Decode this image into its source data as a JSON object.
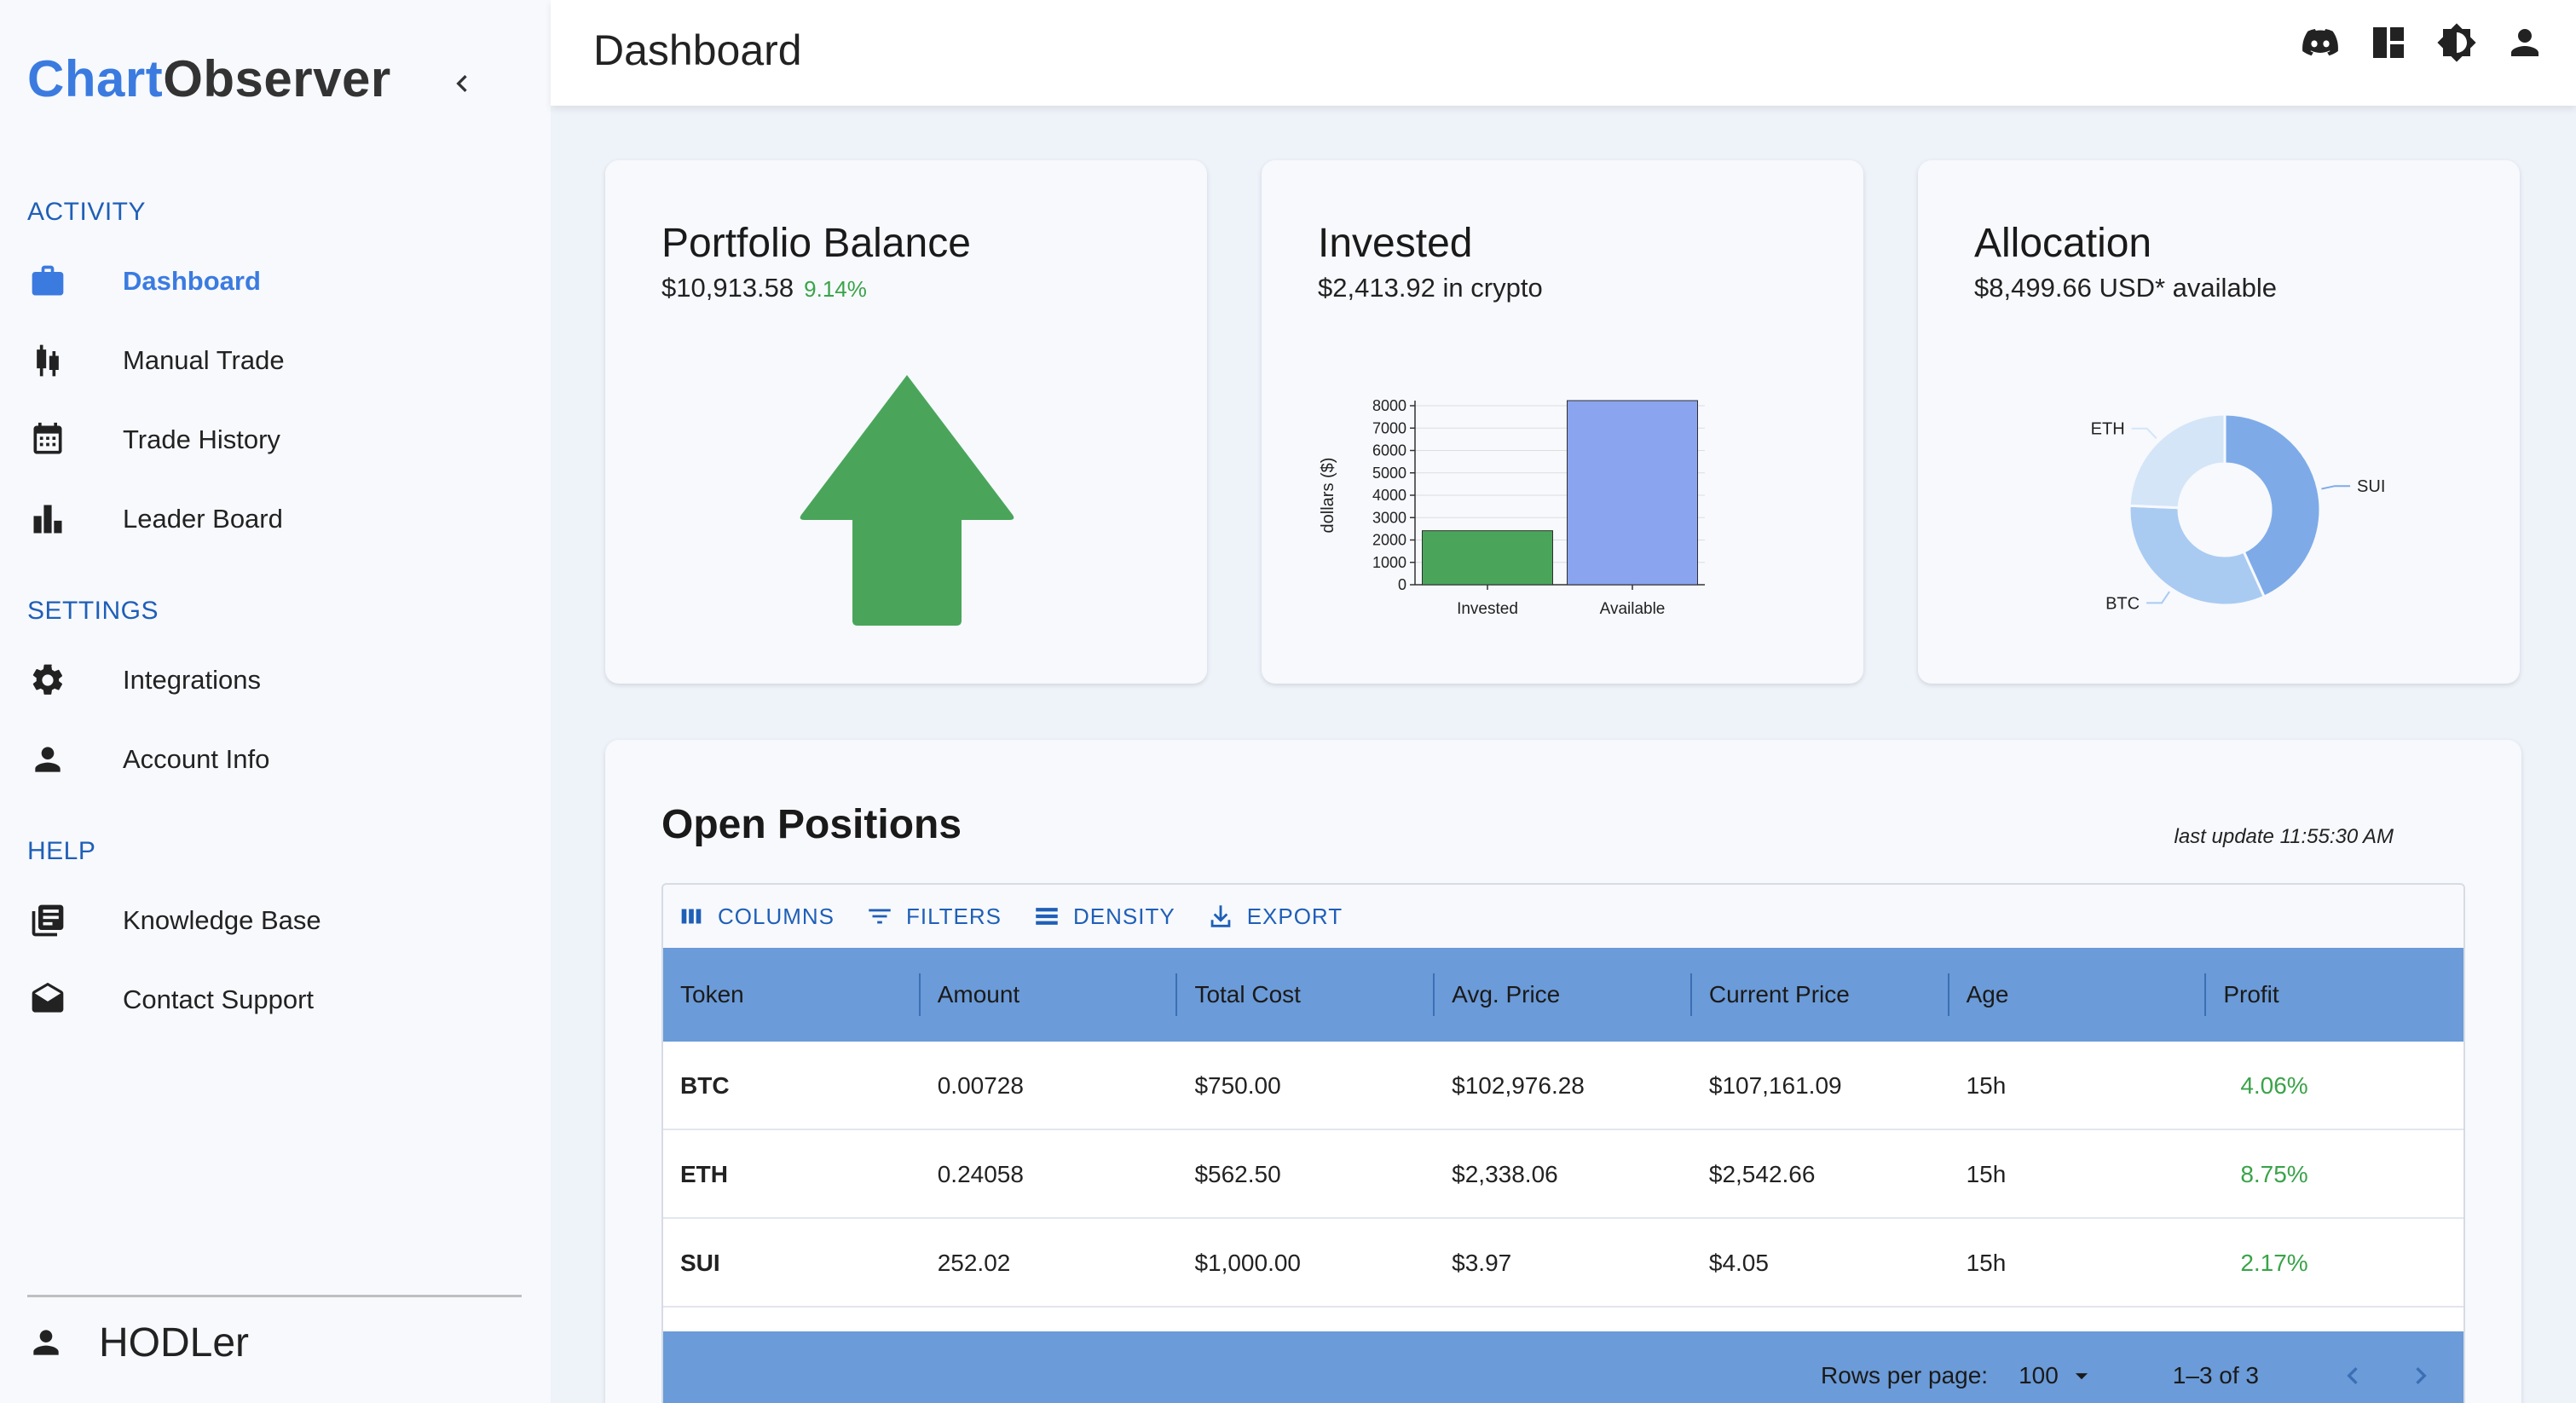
{
  "brand": {
    "part1": "Chart",
    "part2": "Observer"
  },
  "sidebar": {
    "sections": {
      "activity": "ACTIVITY",
      "settings": "SETTINGS",
      "help": "HELP"
    },
    "items": [
      {
        "label": "Dashboard",
        "icon": "briefcase-icon",
        "active": true
      },
      {
        "label": "Manual Trade",
        "icon": "candlestick-icon"
      },
      {
        "label": "Trade History",
        "icon": "calendar-icon"
      },
      {
        "label": "Leader Board",
        "icon": "bar-chart-icon"
      },
      {
        "label": "Integrations",
        "icon": "gear-icon"
      },
      {
        "label": "Account Info",
        "icon": "person-icon"
      },
      {
        "label": "Knowledge Base",
        "icon": "book-icon"
      },
      {
        "label": "Contact Support",
        "icon": "mail-icon"
      }
    ],
    "user": "HODLer"
  },
  "header": {
    "title": "Dashboard",
    "icons": [
      "discord-icon",
      "layout-icon",
      "theme-icon",
      "account-icon"
    ]
  },
  "cards": {
    "balance": {
      "title": "Portfolio Balance",
      "value": "$10,913.58",
      "change": "9.14%"
    },
    "invested": {
      "title": "Invested",
      "subtitle": "$2,413.92 in crypto"
    },
    "allocation": {
      "title": "Allocation",
      "subtitle": "$8,499.66 USD* available"
    }
  },
  "chart_data": [
    {
      "type": "bar",
      "categories": [
        "Invested",
        "Available"
      ],
      "values": [
        2413.92,
        8499.66
      ],
      "ylabel": "dollars ($)",
      "ylim": [
        0,
        8000
      ],
      "yticks": [
        "0",
        "1000",
        "2000",
        "3000",
        "4000",
        "5000",
        "6000",
        "7000",
        "8000"
      ],
      "colors": [
        "#4aa55b",
        "#8ba4f0"
      ],
      "grid": true
    },
    {
      "type": "pie",
      "labels": [
        "SUI",
        "BTC",
        "ETH"
      ],
      "values": [
        1000.0,
        750.0,
        562.5
      ],
      "colors": [
        "#7eabe8",
        "#a9cbf2",
        "#d4e5f8"
      ],
      "donut": true
    }
  ],
  "positions": {
    "title": "Open Positions",
    "last_update": "last update 11:55:30 AM",
    "toolbar": {
      "columns": "COLUMNS",
      "filters": "FILTERS",
      "density": "DENSITY",
      "export": "EXPORT"
    },
    "headers": [
      "Token",
      "Amount",
      "Total Cost",
      "Avg. Price",
      "Current Price",
      "Age",
      "Profit"
    ],
    "rows": [
      [
        "BTC",
        "0.00728",
        "$750.00",
        "$102,976.28",
        "$107,161.09",
        "15h",
        "4.06%"
      ],
      [
        "ETH",
        "0.24058",
        "$562.50",
        "$2,338.06",
        "$2,542.66",
        "15h",
        "8.75%"
      ],
      [
        "SUI",
        "252.02",
        "$1,000.00",
        "$3.97",
        "$4.05",
        "15h",
        "2.17%"
      ]
    ],
    "footer": {
      "rows_per_page_label": "Rows per page:",
      "rows_per_page": "100",
      "range": "1–3 of 3"
    }
  },
  "colors": {
    "accent": "#3b7be0",
    "header_blue": "#6b9bd8",
    "profit_green": "#3aa349",
    "arrow_green": "#4aa55b"
  }
}
